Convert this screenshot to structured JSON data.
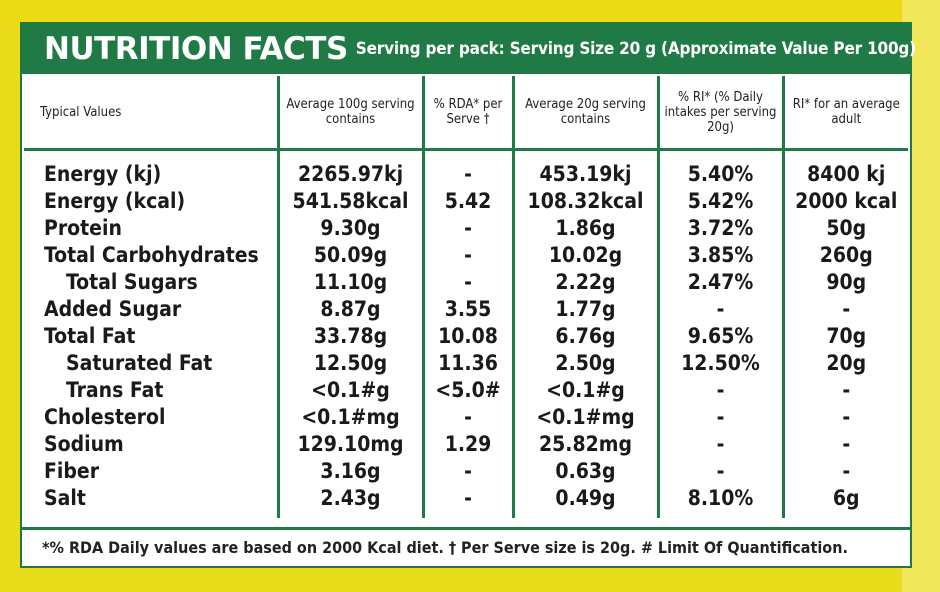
{
  "header": {
    "title": "NUTRITION FACTS",
    "serving": "Serving per pack: Serving Size 20 g  (Approximate Value Per 100g)"
  },
  "columns": [
    "Typical Values",
    "Average 100g serving contains",
    "% RDA* per Serve †",
    "Average 20g serving contains",
    "% RI* (% Daily intakes per serving 20g)",
    "RI* for an average adult"
  ],
  "rows": [
    {
      "name": "Energy (kj)",
      "per100": "2265.97kj",
      "rda": "-",
      "per20": "453.19kj",
      "ri_pct": "5.40%",
      "ri_adult": "8400 kj"
    },
    {
      "name": "Energy (kcal)",
      "per100": "541.58kcal",
      "rda": "5.42",
      "per20": "108.32kcal",
      "ri_pct": "5.42%",
      "ri_adult": "2000 kcal"
    },
    {
      "name": "Protein",
      "per100": "9.30g",
      "rda": "-",
      "per20": "1.86g",
      "ri_pct": "3.72%",
      "ri_adult": "50g"
    },
    {
      "name": "Total Carbohydrates",
      "per100": "50.09g",
      "rda": "-",
      "per20": "10.02g",
      "ri_pct": "3.85%",
      "ri_adult": "260g"
    },
    {
      "name": "Total Sugars",
      "per100": "11.10g",
      "rda": "-",
      "per20": "2.22g",
      "ri_pct": "2.47%",
      "ri_adult": "90g"
    },
    {
      "name": "Added Sugar",
      "per100": "8.87g",
      "rda": "3.55",
      "per20": "1.77g",
      "ri_pct": "-",
      "ri_adult": "-"
    },
    {
      "name": "Total Fat",
      "per100": "33.78g",
      "rda": "10.08",
      "per20": "6.76g",
      "ri_pct": "9.65%",
      "ri_adult": "70g"
    },
    {
      "name": "Saturated Fat",
      "per100": "12.50g",
      "rda": "11.36",
      "per20": "2.50g",
      "ri_pct": "12.50%",
      "ri_adult": "20g"
    },
    {
      "name": "Trans Fat",
      "per100": "<0.1#g",
      "rda": "<5.0#",
      "per20": "<0.1#g",
      "ri_pct": "-",
      "ri_adult": "-"
    },
    {
      "name": "Cholesterol",
      "per100": "<0.1#mg",
      "rda": "-",
      "per20": "<0.1#mg",
      "ri_pct": "-",
      "ri_adult": "-"
    },
    {
      "name": "Sodium",
      "per100": "129.10mg",
      "rda": "1.29",
      "per20": "25.82mg",
      "ri_pct": "-",
      "ri_adult": "-"
    },
    {
      "name": "Fiber",
      "per100": "3.16g",
      "rda": "-",
      "per20": "0.63g",
      "ri_pct": "-",
      "ri_adult": "-"
    },
    {
      "name": "Salt",
      "per100": "2.43g",
      "rda": "-",
      "per20": "0.49g",
      "ri_pct": "8.10%",
      "ri_adult": "6g"
    }
  ],
  "footer": "*% RDA Daily values are based on 2000 Kcal diet. † Per Serve size is 20g. # Limit Of Quantification.",
  "colors": {
    "brand_green": "#1f7a45",
    "background_yellow": "#e9dc1a"
  }
}
